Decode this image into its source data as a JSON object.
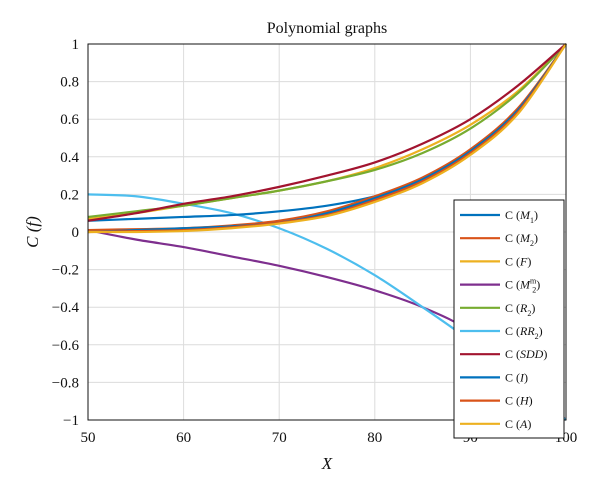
{
  "chart_data": {
    "type": "line",
    "title": "Polynomial graphs",
    "xlabel": "X",
    "ylabel": "C (f)",
    "xlim": [
      50,
      100
    ],
    "ylim": [
      -1,
      1
    ],
    "xticks": [
      50,
      60,
      70,
      80,
      90,
      100
    ],
    "yticks": [
      -1,
      -0.8,
      -0.6,
      -0.4,
      -0.2,
      0,
      0.2,
      0.4,
      0.6,
      0.8,
      1
    ],
    "grid": true,
    "legend_position": "bottom-right",
    "x": [
      50,
      55,
      60,
      65,
      70,
      75,
      80,
      85,
      90,
      95,
      100
    ],
    "series": [
      {
        "name": "C (M1)",
        "color": "#0072BD",
        "values": [
          0.06,
          0.07,
          0.08,
          0.09,
          0.11,
          0.14,
          0.19,
          0.27,
          0.42,
          0.65,
          1.0
        ]
      },
      {
        "name": "C (M2)",
        "color": "#D95319",
        "values": [
          0.01,
          0.015,
          0.02,
          0.035,
          0.06,
          0.11,
          0.19,
          0.29,
          0.44,
          0.66,
          1.0
        ]
      },
      {
        "name": "C (F)",
        "color": "#EDB120",
        "values": [
          0.07,
          0.1,
          0.14,
          0.18,
          0.22,
          0.27,
          0.34,
          0.44,
          0.57,
          0.75,
          1.0
        ]
      },
      {
        "name": "C (M2m)",
        "color": "#7E2F8E",
        "values": [
          0.01,
          -0.04,
          -0.08,
          -0.13,
          -0.18,
          -0.24,
          -0.31,
          -0.4,
          -0.53,
          -0.76,
          -1.0
        ]
      },
      {
        "name": "C (R2)",
        "color": "#77AC30",
        "values": [
          0.08,
          0.11,
          0.14,
          0.18,
          0.22,
          0.27,
          0.33,
          0.42,
          0.55,
          0.74,
          1.0
        ]
      },
      {
        "name": "C (RR2)",
        "color": "#4DBEEE",
        "values": [
          0.2,
          0.19,
          0.15,
          0.1,
          0.02,
          -0.09,
          -0.23,
          -0.4,
          -0.58,
          -0.79,
          -1.0
        ]
      },
      {
        "name": "C (SDD)",
        "color": "#A2142F",
        "values": [
          0.06,
          0.1,
          0.15,
          0.19,
          0.24,
          0.3,
          0.37,
          0.47,
          0.6,
          0.78,
          1.0
        ]
      },
      {
        "name": "C (I)",
        "color": "#0072BD",
        "values": [
          0.0,
          0.01,
          0.02,
          0.03,
          0.05,
          0.1,
          0.18,
          0.28,
          0.43,
          0.65,
          1.0
        ]
      },
      {
        "name": "C (H)",
        "color": "#D95319",
        "values": [
          0.0,
          0.005,
          0.01,
          0.025,
          0.05,
          0.09,
          0.17,
          0.27,
          0.42,
          0.64,
          1.0
        ]
      },
      {
        "name": "C (A)",
        "color": "#EDB120",
        "values": [
          0.0,
          0.0,
          0.005,
          0.02,
          0.045,
          0.085,
          0.16,
          0.26,
          0.41,
          0.63,
          1.0
        ]
      }
    ],
    "legend": [
      {
        "prefix": "C (",
        "var": "M",
        "sub": "1",
        "sup": "",
        "suffix": ")"
      },
      {
        "prefix": "C (",
        "var": "M",
        "sub": "2",
        "sup": "",
        "suffix": ")"
      },
      {
        "prefix": "C (",
        "var": "F",
        "sub": "",
        "sup": "",
        "suffix": ")"
      },
      {
        "prefix": "C (",
        "var": "M",
        "sub": "2",
        "sup": "m",
        "suffix": ")"
      },
      {
        "prefix": "C (",
        "var": "R",
        "sub": "2",
        "sup": "",
        "suffix": ")"
      },
      {
        "prefix": "C (",
        "var": "RR",
        "sub": "2",
        "sup": "",
        "suffix": ")"
      },
      {
        "prefix": "C (",
        "var": "SDD",
        "sub": "",
        "sup": "",
        "suffix": ")"
      },
      {
        "prefix": "C (",
        "var": "I",
        "sub": "",
        "sup": "",
        "suffix": ")"
      },
      {
        "prefix": "C (",
        "var": "H",
        "sub": "",
        "sup": "",
        "suffix": ")"
      },
      {
        "prefix": "C (",
        "var": "A",
        "sub": "",
        "sup": "",
        "suffix": ")"
      }
    ]
  }
}
